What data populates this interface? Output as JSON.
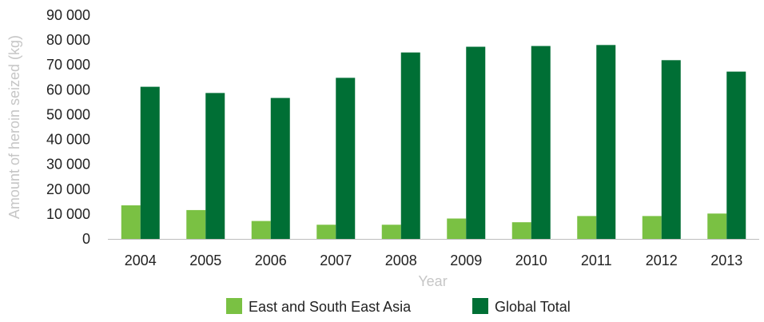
{
  "chart_data": {
    "type": "bar",
    "categories": [
      "2004",
      "2005",
      "2006",
      "2007",
      "2008",
      "2009",
      "2010",
      "2011",
      "2012",
      "2013"
    ],
    "series": [
      {
        "name": "East and South East Asia",
        "color": "#7ac143",
        "values": [
          13500,
          11600,
          7200,
          5700,
          5700,
          8200,
          6700,
          9200,
          9200,
          10200
        ]
      },
      {
        "name": "Global Total",
        "color": "#006f35",
        "values": [
          61200,
          58700,
          56700,
          64800,
          75000,
          77300,
          77600,
          78000,
          71900,
          67300
        ]
      }
    ],
    "xlabel": "Year",
    "ylabel": "Amount of heroin seized (kg)",
    "ylim": [
      0,
      90000
    ],
    "yticks": [
      0,
      10000,
      20000,
      30000,
      40000,
      50000,
      60000,
      70000,
      80000,
      90000
    ],
    "ytick_labels": [
      "0",
      "10 000",
      "20 000",
      "30 000",
      "40 000",
      "50 000",
      "60 000",
      "70 000",
      "80 000",
      "90 000"
    ],
    "grid": false,
    "legend_position": "bottom"
  }
}
